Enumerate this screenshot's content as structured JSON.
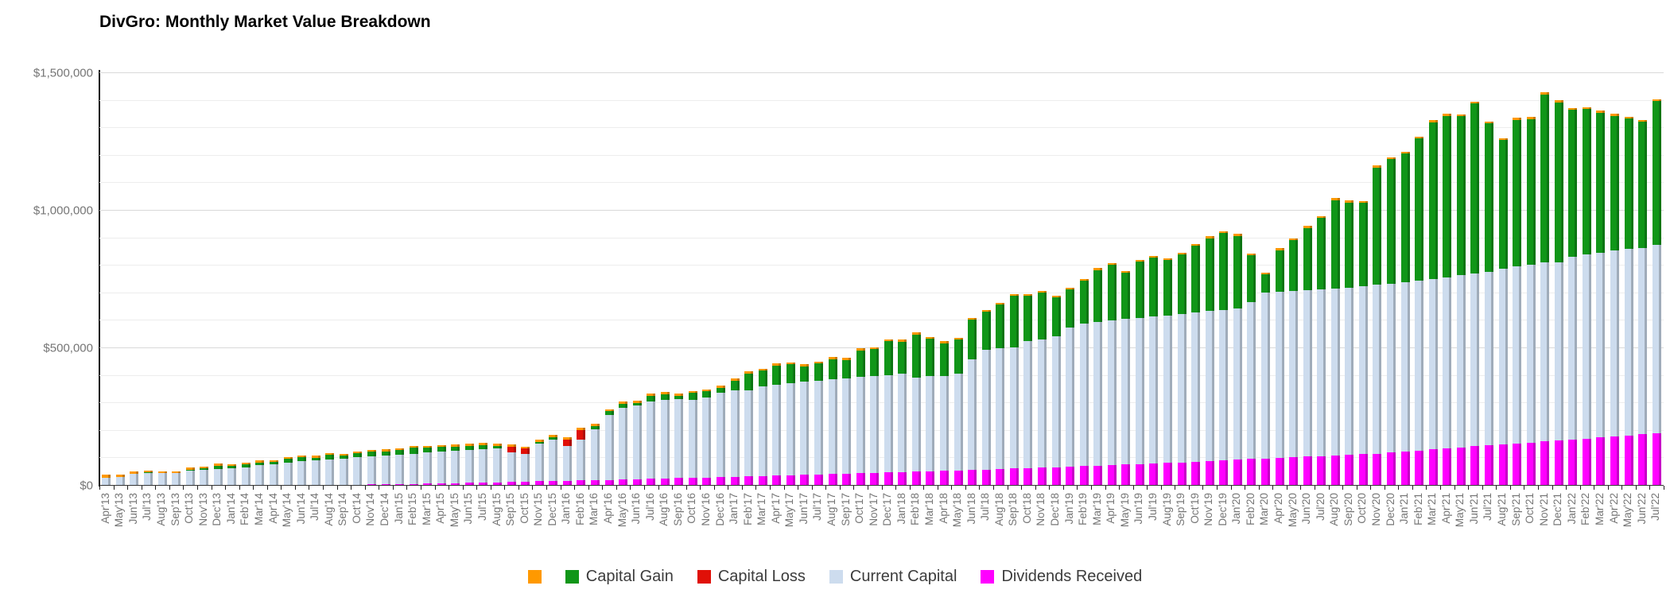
{
  "title": "DivGro: Monthly Market Value Breakdown",
  "colors": {
    "cash_orange": "#ff9900",
    "capital_gain": "#109618",
    "capital_loss": "#e01008",
    "current_capital": "#cddcee",
    "dividends": "#ff00ff",
    "axis": "#111111",
    "tick_text": "#757575",
    "grid_minor": "#ededed",
    "grid_major": "#d9d9d9"
  },
  "legend": {
    "items": [
      {
        "label": "",
        "color": "#ff9900"
      },
      {
        "label": "Capital Gain",
        "color": "#109618"
      },
      {
        "label": "Capital Loss",
        "color": "#e01008"
      },
      {
        "label": "Current Capital",
        "color": "#cddcee"
      },
      {
        "label": "Dividends Received",
        "color": "#ff00ff"
      }
    ]
  },
  "chart_data": {
    "type": "bar",
    "stacked": true,
    "title": "DivGro: Monthly Market Value Breakdown",
    "units": "USD thousands",
    "ylim": [
      0,
      1500
    ],
    "grid_step_minor": 100,
    "grid_step_labeled": 500,
    "y_tick_labels": [
      "$0",
      "$500,000",
      "$1,000,000",
      "$1,500,000"
    ],
    "legend_position": "bottom",
    "categories": [
      "Apr'13",
      "May'13",
      "Jun'13",
      "Jul'13",
      "Aug'13",
      "Sep'13",
      "Oct'13",
      "Nov'13",
      "Dec'13",
      "Jan'14",
      "Feb'14",
      "Mar'14",
      "Apr'14",
      "May'14",
      "Jun'14",
      "Jul'14",
      "Aug'14",
      "Sep'14",
      "Oct'14",
      "Nov'14",
      "Dec'14",
      "Jan'15",
      "Feb'15",
      "Mar'15",
      "Apr'15",
      "May'15",
      "Jun'15",
      "Jul'15",
      "Aug'15",
      "Sep'15",
      "Oct'15",
      "Nov'15",
      "Dec'15",
      "Jan'16",
      "Feb'16",
      "Mar'16",
      "Apr'16",
      "May'16",
      "Jun'16",
      "Jul'16",
      "Aug'16",
      "Sep'16",
      "Oct'16",
      "Nov'16",
      "Dec'16",
      "Jan'17",
      "Feb'17",
      "Mar'17",
      "Apr'17",
      "May'17",
      "Jun'17",
      "Jul'17",
      "Aug'17",
      "Sep'17",
      "Oct'17",
      "Nov'17",
      "Dec'17",
      "Jan'18",
      "Feb'18",
      "Mar'18",
      "Apr'18",
      "May'18",
      "Jun'18",
      "Jul'18",
      "Aug'18",
      "Sep'18",
      "Oct'18",
      "Nov'18",
      "Dec'18",
      "Jan'19",
      "Feb'19",
      "Mar'19",
      "Apr'19",
      "May'19",
      "Jun'19",
      "Jul'19",
      "Aug'19",
      "Sep'19",
      "Oct'19",
      "Nov'19",
      "Dec'19",
      "Jan'20",
      "Feb'20",
      "Mar'20",
      "Apr'20",
      "May'20",
      "Jun'20",
      "Jul'20",
      "Aug'20",
      "Sep'20",
      "Oct'20",
      "Nov'20",
      "Dec'20",
      "Jan'21",
      "Feb'21",
      "Mar'21",
      "Apr'21",
      "May'21",
      "Jun'21",
      "Jul'21",
      "Aug'21",
      "Sep'21",
      "Oct'21",
      "Nov'21",
      "Dec'21",
      "Jan'22",
      "Feb'22",
      "Mar'22",
      "Apr'22",
      "May'22",
      "Jun'22",
      "Jul'22"
    ],
    "series": [
      {
        "name": "Dividends Received",
        "color": "#ff00ff",
        "values": [
          0,
          0,
          0,
          0,
          0,
          0,
          1,
          1,
          1,
          1,
          1,
          2,
          2,
          2,
          3,
          3,
          3,
          4,
          4,
          5,
          5,
          6,
          7,
          8,
          9,
          10,
          11,
          12,
          13,
          14,
          15,
          16,
          17,
          18,
          19,
          20,
          21,
          23,
          24,
          26,
          27,
          28,
          29,
          30,
          31,
          33,
          34,
          35,
          37,
          38,
          40,
          41,
          43,
          44,
          46,
          47,
          48,
          50,
          52,
          53,
          55,
          56,
          58,
          59,
          61,
          63,
          65,
          66,
          67,
          69,
          71,
          73,
          75,
          77,
          79,
          81,
          83,
          85,
          87,
          90,
          92,
          95,
          97,
          99,
          101,
          103,
          106,
          108,
          110,
          113,
          115,
          117,
          120,
          123,
          128,
          133,
          136,
          140,
          144,
          147,
          150,
          153,
          157,
          161,
          165,
          168,
          172,
          176,
          180,
          183,
          187,
          191
        ]
      },
      {
        "name": "Current Capital",
        "color": "#cddcee",
        "values": [
          30,
          32,
          43,
          45,
          45,
          46,
          53,
          56,
          59,
          62,
          66,
          72,
          75,
          81,
          87,
          90,
          92,
          95,
          99,
          102,
          105,
          108,
          110,
          112,
          114,
          116,
          118,
          120,
          122,
          107,
          102,
          136,
          152,
          127,
          150,
          185,
          235,
          261,
          269,
          279,
          285,
          288,
          283,
          290,
          308,
          315,
          313,
          325,
          331,
          335,
          338,
          341,
          343,
          346,
          350,
          352,
          355,
          358,
          341,
          345,
          345,
          352,
          403,
          435,
          438,
          441,
          460,
          467,
          476,
          507,
          520,
          522,
          527,
          530,
          531,
          534,
          537,
          540,
          543,
          545,
          548,
          550,
          572,
          603,
          604,
          605,
          606,
          607,
          608,
          608,
          610,
          613,
          615,
          617,
          617,
          619,
          622,
          625,
          628,
          631,
          640,
          645,
          646,
          651,
          647,
          664,
          669,
          670,
          676,
          678,
          678,
          684
        ]
      },
      {
        "name": "Capital Gain",
        "color": "#109618",
        "values": [
          0,
          0,
          0,
          3,
          2,
          1,
          5,
          6,
          12,
          8,
          11,
          10,
          10,
          14,
          14,
          9,
          17,
          11,
          15,
          16,
          15,
          15,
          21,
          19,
          18,
          17,
          16,
          16,
          10,
          0,
          0,
          8,
          8,
          0,
          0,
          13,
          15,
          15,
          9,
          23,
          21,
          12,
          26,
          23,
          18,
          35,
          61,
          58,
          69,
          68,
          57,
          62,
          74,
          67,
          96,
          98,
          123,
          116,
          157,
          137,
          118,
          123,
          142,
          138,
          159,
          186,
          165,
          168,
          142,
          138,
          154,
          189,
          201,
          167,
          205,
          214,
          200,
          216,
          243,
          265,
          278,
          263,
          168,
          66,
          152,
          185,
          225,
          259,
          320,
          309,
          303,
          427,
          453,
          468,
          518,
          570,
          587,
          578,
          618,
          540,
          467,
          533,
          530,
          611,
          582,
          535,
          529,
          511,
          489,
          473,
          458,
          523
        ]
      },
      {
        "name": "Capital Loss",
        "color": "#e01008",
        "values": [
          0,
          0,
          0,
          0,
          0,
          0,
          0,
          0,
          0,
          0,
          0,
          0,
          0,
          0,
          0,
          0,
          0,
          0,
          0,
          0,
          0,
          0,
          0,
          0,
          0,
          0,
          0,
          0,
          0,
          21,
          19,
          0,
          0,
          24,
          34,
          0,
          0,
          0,
          0,
          0,
          0,
          0,
          0,
          0,
          0,
          0,
          0,
          0,
          0,
          0,
          0,
          0,
          0,
          0,
          0,
          0,
          0,
          0,
          0,
          0,
          0,
          0,
          0,
          0,
          0,
          0,
          0,
          0,
          0,
          0,
          0,
          0,
          0,
          0,
          0,
          0,
          0,
          0,
          0,
          0,
          0,
          0,
          0,
          0,
          0,
          0,
          0,
          0,
          0,
          0,
          0,
          0,
          0,
          0,
          0,
          0,
          0,
          0,
          0,
          0,
          0,
          0,
          0,
          0,
          0,
          0,
          0,
          0,
          0,
          0,
          0,
          0
        ]
      },
      {
        "name": "",
        "color": "#ff9900",
        "values": [
          11,
          8,
          8,
          8,
          6,
          6,
          7,
          7,
          8,
          7,
          7,
          8,
          7,
          7,
          7,
          7,
          7,
          7,
          7,
          7,
          7,
          7,
          7,
          7,
          7,
          7,
          7,
          7,
          7,
          7,
          7,
          7,
          7,
          7,
          7,
          7,
          7,
          7,
          7,
          7,
          7,
          7,
          7,
          7,
          7,
          7,
          7,
          7,
          7,
          7,
          7,
          7,
          7,
          7,
          7,
          7,
          7,
          7,
          7,
          7,
          7,
          7,
          7,
          7,
          7,
          7,
          7,
          7,
          7,
          7,
          7,
          7,
          7,
          7,
          7,
          7,
          7,
          7,
          7,
          7,
          7,
          7,
          7,
          7,
          7,
          7,
          7,
          7,
          7,
          7,
          7,
          7,
          7,
          7,
          7,
          7,
          7,
          7,
          7,
          7,
          7,
          7,
          7,
          7,
          7,
          7,
          7,
          7,
          7,
          7,
          7,
          7
        ]
      }
    ]
  }
}
